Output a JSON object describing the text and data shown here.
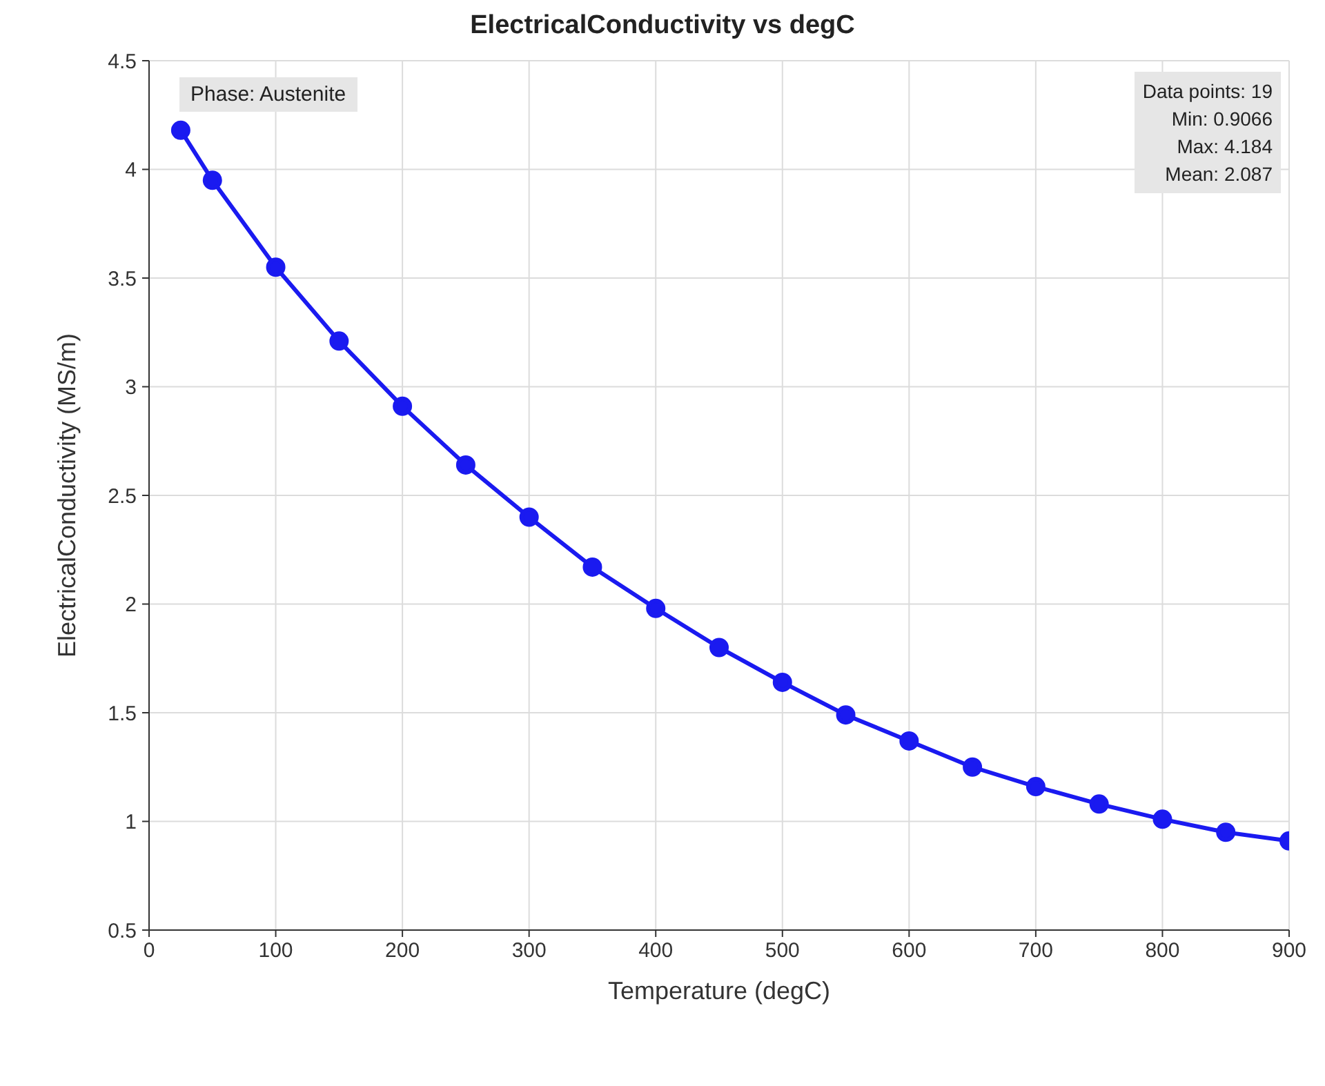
{
  "chart_data": {
    "type": "line",
    "title": "ElectricalConductivity vs degC",
    "xlabel": "Temperature (degC)",
    "ylabel": "ElectricalConductivity (MS/m)",
    "x": [
      25,
      50,
      100,
      150,
      200,
      250,
      300,
      350,
      400,
      450,
      500,
      550,
      600,
      650,
      700,
      750,
      800,
      850,
      900
    ],
    "series": [
      {
        "color": "#1a1af0",
        "values": [
          4.18,
          3.95,
          3.55,
          3.21,
          2.91,
          2.64,
          2.4,
          2.17,
          1.98,
          1.8,
          1.64,
          1.49,
          1.37,
          1.25,
          1.16,
          1.08,
          1.01,
          0.95,
          0.91
        ]
      }
    ],
    "xlim": [
      0,
      900
    ],
    "xticks": [
      0,
      100,
      200,
      300,
      400,
      500,
      600,
      700,
      800,
      900
    ],
    "ylim": [
      0.5,
      4.5
    ],
    "yticks": [
      0.5,
      1,
      1.5,
      2,
      2.5,
      3,
      3.5,
      4,
      4.5
    ],
    "grid": true,
    "marker": "circle",
    "line_style": "solid",
    "annotations": [
      "Phase: Austenite",
      "Data points: 19\nMin: 0.9066\nMax: 4.184\nMean: 2.087"
    ]
  }
}
